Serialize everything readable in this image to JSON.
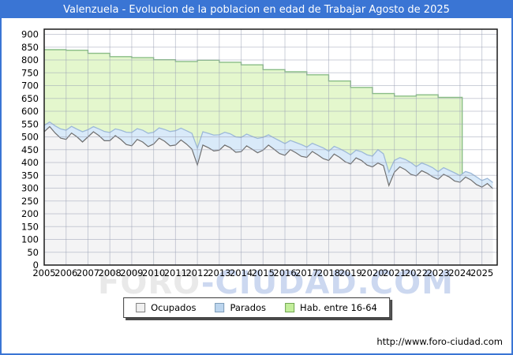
{
  "title": "Valenzuela - Evolucion de la poblacion en edad de Trabajar Agosto de 2025",
  "watermark": {
    "part1": "FORO",
    "part2": "-CIUDAD.COM"
  },
  "footer": {
    "url": "http://www.foro-ciudad.com"
  },
  "legend": {
    "items": [
      {
        "label": "Ocupados",
        "fill": "#f0f0f0",
        "border": "#808080"
      },
      {
        "label": "Parados",
        "fill": "#bcd5ee",
        "border": "#7f9db9"
      },
      {
        "label": "Hab. entre 16-64",
        "fill": "#c3ee9b",
        "border": "#71a653"
      }
    ]
  },
  "chart_data": {
    "type": "area",
    "title": "Valenzuela - Evolucion de la poblacion en edad de Trabajar Agosto de 2025",
    "legend_labels": [
      "Ocupados",
      "Parados",
      "Hab. entre 16-64"
    ],
    "legend_position": "bottom",
    "grid": true,
    "xlim": [
      2005,
      2025.7
    ],
    "ylim": [
      0,
      920
    ],
    "x_ticks": [
      2005,
      2006,
      2007,
      2008,
      2009,
      2010,
      2011,
      2012,
      2013,
      2014,
      2015,
      2016,
      2017,
      2018,
      2019,
      2020,
      2021,
      2022,
      2023,
      2024,
      2025
    ],
    "y_ticks": [
      0,
      50,
      100,
      150,
      200,
      250,
      300,
      350,
      400,
      450,
      500,
      550,
      600,
      650,
      700,
      750,
      800,
      850,
      900
    ],
    "x_start": 2005,
    "x_step": 0.25,
    "series": {
      "ocupados": [
        520,
        540,
        515,
        495,
        490,
        515,
        500,
        480,
        500,
        520,
        505,
        485,
        485,
        505,
        490,
        470,
        465,
        490,
        480,
        462,
        472,
        495,
        483,
        465,
        468,
        488,
        472,
        452,
        390,
        468,
        458,
        445,
        448,
        468,
        458,
        440,
        442,
        465,
        452,
        438,
        448,
        468,
        452,
        435,
        428,
        450,
        438,
        424,
        420,
        443,
        430,
        415,
        408,
        433,
        420,
        403,
        394,
        418,
        408,
        390,
        383,
        398,
        388,
        310,
        362,
        383,
        372,
        354,
        348,
        368,
        358,
        344,
        334,
        354,
        344,
        328,
        323,
        343,
        332,
        314,
        304,
        318,
        298
      ],
      "parados": [
        25,
        18,
        28,
        36,
        36,
        26,
        30,
        40,
        28,
        20,
        26,
        36,
        32,
        26,
        36,
        48,
        52,
        42,
        46,
        52,
        46,
        40,
        46,
        56,
        56,
        46,
        52,
        62,
        66,
        52,
        56,
        62,
        60,
        50,
        54,
        60,
        56,
        46,
        50,
        56,
        50,
        40,
        44,
        50,
        46,
        36,
        40,
        46,
        40,
        32,
        36,
        42,
        36,
        30,
        34,
        40,
        36,
        30,
        34,
        40,
        42,
        52,
        46,
        52,
        46,
        36,
        40,
        46,
        36,
        30,
        32,
        36,
        30,
        26,
        26,
        32,
        26,
        22,
        26,
        30,
        26,
        20,
        24
      ],
      "parados_stacking": "parados band is drawn stacked on top of ocupados",
      "hab_16_64": {
        "years": [
          2005,
          2006,
          2007,
          2008,
          2009,
          2010,
          2011,
          2012,
          2013,
          2014,
          2015,
          2016,
          2017,
          2018,
          2019,
          2020,
          2021,
          2022,
          2023
        ],
        "values": [
          840,
          838,
          826,
          813,
          809,
          801,
          794,
          799,
          791,
          781,
          762,
          754,
          742,
          718,
          693,
          669,
          659,
          664,
          654
        ],
        "end_x": 2024.1
      }
    },
    "colors": {
      "titlebar": "#3a75d4",
      "hab_fill": "#e4f7cd",
      "hab_line": "#89bd85",
      "parados_fill": "#d9eaf9",
      "parados_line": "#9db9d8",
      "ocupados_fill": "#f4f4f5",
      "ocupados_line": "#6f6f6f",
      "grid": "#9aa0b4",
      "frame": "#1a1a1a"
    }
  }
}
